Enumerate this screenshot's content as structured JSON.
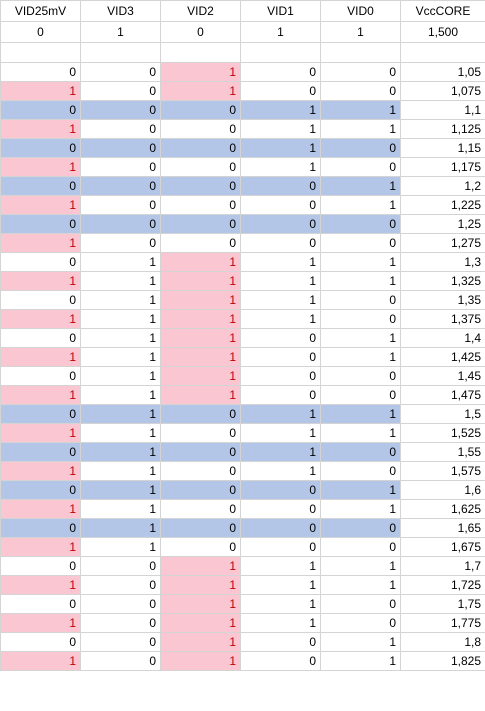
{
  "headers": [
    "VID25mV",
    "VID3",
    "VID2",
    "VID1",
    "VID0",
    "VccCORE"
  ],
  "header_values": [
    "0",
    "1",
    "0",
    "1",
    "1",
    "1,500"
  ],
  "colors": {
    "pink": "#f9c6d1",
    "blue": "#b4c6e7",
    "red_text": "#c00000"
  },
  "rows": [
    {
      "cells": [
        "0",
        "0",
        "1",
        "0",
        "0",
        "1,05"
      ],
      "styles": [
        "",
        "",
        "pink red",
        "",
        "",
        ""
      ]
    },
    {
      "cells": [
        "1",
        "0",
        "1",
        "0",
        "0",
        "1,075"
      ],
      "styles": [
        "pink red",
        "",
        "pink red",
        "",
        "",
        ""
      ]
    },
    {
      "cells": [
        "0",
        "0",
        "0",
        "1",
        "1",
        "1,1"
      ],
      "styles": [
        "blue",
        "blue",
        "blue",
        "blue",
        "blue",
        ""
      ]
    },
    {
      "cells": [
        "1",
        "0",
        "0",
        "1",
        "1",
        "1,125"
      ],
      "styles": [
        "pink red",
        "",
        "",
        "",
        "",
        ""
      ]
    },
    {
      "cells": [
        "0",
        "0",
        "0",
        "1",
        "0",
        "1,15"
      ],
      "styles": [
        "blue",
        "blue",
        "blue",
        "blue",
        "blue",
        ""
      ]
    },
    {
      "cells": [
        "1",
        "0",
        "0",
        "1",
        "0",
        "1,175"
      ],
      "styles": [
        "pink red",
        "",
        "",
        "",
        "",
        ""
      ]
    },
    {
      "cells": [
        "0",
        "0",
        "0",
        "0",
        "1",
        "1,2"
      ],
      "styles": [
        "blue",
        "blue",
        "blue",
        "blue",
        "blue",
        ""
      ]
    },
    {
      "cells": [
        "1",
        "0",
        "0",
        "0",
        "1",
        "1,225"
      ],
      "styles": [
        "pink red",
        "",
        "",
        "",
        "",
        ""
      ]
    },
    {
      "cells": [
        "0",
        "0",
        "0",
        "0",
        "0",
        "1,25"
      ],
      "styles": [
        "blue",
        "blue",
        "blue",
        "blue",
        "blue",
        ""
      ]
    },
    {
      "cells": [
        "1",
        "0",
        "0",
        "0",
        "0",
        "1,275"
      ],
      "styles": [
        "pink red",
        "",
        "",
        "",
        "",
        ""
      ]
    },
    {
      "cells": [
        "0",
        "1",
        "1",
        "1",
        "1",
        "1,3"
      ],
      "styles": [
        "",
        "",
        "pink red",
        "",
        "",
        ""
      ]
    },
    {
      "cells": [
        "1",
        "1",
        "1",
        "1",
        "1",
        "1,325"
      ],
      "styles": [
        "pink red",
        "",
        "pink red",
        "",
        "",
        ""
      ]
    },
    {
      "cells": [
        "0",
        "1",
        "1",
        "1",
        "0",
        "1,35"
      ],
      "styles": [
        "",
        "",
        "pink red",
        "",
        "",
        ""
      ]
    },
    {
      "cells": [
        "1",
        "1",
        "1",
        "1",
        "0",
        "1,375"
      ],
      "styles": [
        "pink red",
        "",
        "pink red",
        "",
        "",
        ""
      ]
    },
    {
      "cells": [
        "0",
        "1",
        "1",
        "0",
        "1",
        "1,4"
      ],
      "styles": [
        "",
        "",
        "pink red",
        "",
        "",
        ""
      ]
    },
    {
      "cells": [
        "1",
        "1",
        "1",
        "0",
        "1",
        "1,425"
      ],
      "styles": [
        "pink red",
        "",
        "pink red",
        "",
        "",
        ""
      ]
    },
    {
      "cells": [
        "0",
        "1",
        "1",
        "0",
        "0",
        "1,45"
      ],
      "styles": [
        "",
        "",
        "pink red",
        "",
        "",
        ""
      ]
    },
    {
      "cells": [
        "1",
        "1",
        "1",
        "0",
        "0",
        "1,475"
      ],
      "styles": [
        "pink red",
        "",
        "pink red",
        "",
        "",
        ""
      ]
    },
    {
      "cells": [
        "0",
        "1",
        "0",
        "1",
        "1",
        "1,5"
      ],
      "styles": [
        "blue",
        "blue",
        "blue",
        "blue",
        "blue",
        ""
      ]
    },
    {
      "cells": [
        "1",
        "1",
        "0",
        "1",
        "1",
        "1,525"
      ],
      "styles": [
        "pink red",
        "",
        "",
        "",
        "",
        ""
      ]
    },
    {
      "cells": [
        "0",
        "1",
        "0",
        "1",
        "0",
        "1,55"
      ],
      "styles": [
        "blue",
        "blue",
        "blue",
        "blue",
        "blue",
        ""
      ]
    },
    {
      "cells": [
        "1",
        "1",
        "0",
        "1",
        "0",
        "1,575"
      ],
      "styles": [
        "pink red",
        "",
        "",
        "",
        "",
        ""
      ]
    },
    {
      "cells": [
        "0",
        "1",
        "0",
        "0",
        "1",
        "1,6"
      ],
      "styles": [
        "blue",
        "blue",
        "blue",
        "blue",
        "blue",
        ""
      ]
    },
    {
      "cells": [
        "1",
        "1",
        "0",
        "0",
        "1",
        "1,625"
      ],
      "styles": [
        "pink red",
        "",
        "",
        "",
        "",
        ""
      ]
    },
    {
      "cells": [
        "0",
        "1",
        "0",
        "0",
        "0",
        "1,65"
      ],
      "styles": [
        "blue",
        "blue",
        "blue",
        "blue",
        "blue",
        ""
      ]
    },
    {
      "cells": [
        "1",
        "1",
        "0",
        "0",
        "0",
        "1,675"
      ],
      "styles": [
        "pink red",
        "",
        "",
        "",
        "",
        ""
      ]
    },
    {
      "cells": [
        "0",
        "0",
        "1",
        "1",
        "1",
        "1,7"
      ],
      "styles": [
        "",
        "",
        "pink red",
        "",
        "",
        ""
      ]
    },
    {
      "cells": [
        "1",
        "0",
        "1",
        "1",
        "1",
        "1,725"
      ],
      "styles": [
        "pink red",
        "",
        "pink red",
        "",
        "",
        ""
      ]
    },
    {
      "cells": [
        "0",
        "0",
        "1",
        "1",
        "0",
        "1,75"
      ],
      "styles": [
        "",
        "",
        "pink red",
        "",
        "",
        ""
      ]
    },
    {
      "cells": [
        "1",
        "0",
        "1",
        "1",
        "0",
        "1,775"
      ],
      "styles": [
        "pink red",
        "",
        "pink red",
        "",
        "",
        ""
      ]
    },
    {
      "cells": [
        "0",
        "0",
        "1",
        "0",
        "1",
        "1,8"
      ],
      "styles": [
        "",
        "",
        "pink red",
        "",
        "",
        ""
      ]
    },
    {
      "cells": [
        "1",
        "0",
        "1",
        "0",
        "1",
        "1,825"
      ],
      "styles": [
        "pink red",
        "",
        "pink red",
        "",
        "",
        ""
      ]
    }
  ]
}
